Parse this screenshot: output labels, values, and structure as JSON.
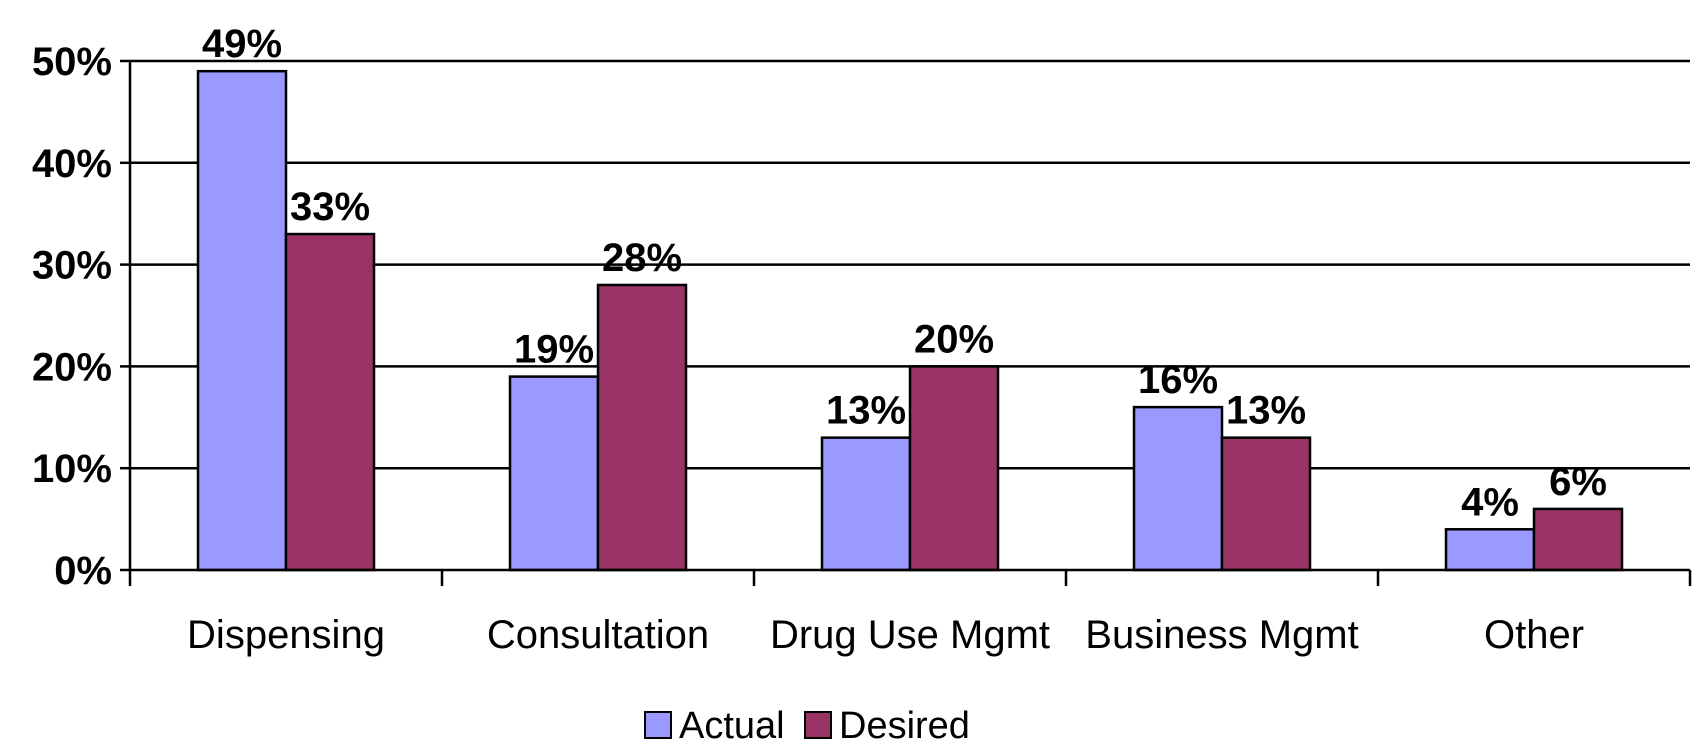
{
  "chart_data": {
    "type": "bar",
    "categories": [
      "Dispensing",
      "Consultation",
      "Drug Use Mgmt",
      "Business Mgmt",
      "Other"
    ],
    "series": [
      {
        "name": "Actual",
        "values": [
          49,
          19,
          13,
          16,
          4
        ],
        "labels": [
          "49%",
          "19%",
          "13%",
          "16%",
          "4%"
        ],
        "color": "#9999ff"
      },
      {
        "name": "Desired",
        "values": [
          33,
          28,
          20,
          13,
          6
        ],
        "labels": [
          "33%",
          "28%",
          "20%",
          "13%",
          "6%"
        ],
        "color": "#993366"
      }
    ],
    "ylim": [
      0,
      50
    ],
    "yticks": [
      0,
      10,
      20,
      30,
      40,
      50
    ],
    "ytick_labels": [
      "0%",
      "10%",
      "20%",
      "30%",
      "40%",
      "50%"
    ],
    "grid": true,
    "legend_position": "bottom"
  }
}
